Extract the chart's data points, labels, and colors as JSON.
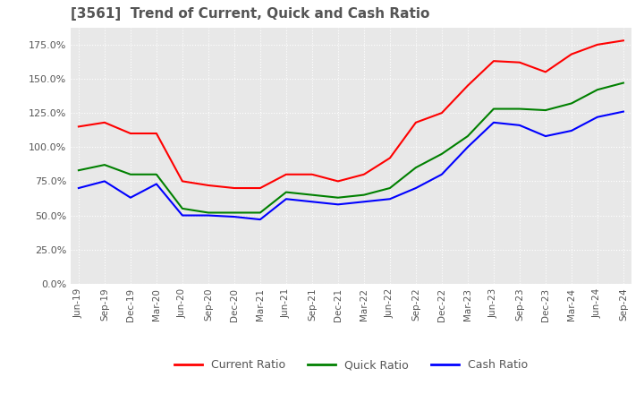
{
  "title": "[3561]  Trend of Current, Quick and Cash Ratio",
  "title_color": "#555555",
  "background_color": "#ffffff",
  "plot_background_color": "#e8e8e8",
  "grid_color": "#ffffff",
  "x_labels": [
    "Jun-19",
    "Sep-19",
    "Dec-19",
    "Mar-20",
    "Jun-20",
    "Sep-20",
    "Dec-20",
    "Mar-21",
    "Jun-21",
    "Sep-21",
    "Dec-21",
    "Mar-22",
    "Jun-22",
    "Sep-22",
    "Dec-22",
    "Mar-23",
    "Jun-23",
    "Sep-23",
    "Dec-23",
    "Mar-24",
    "Jun-24",
    "Sep-24"
  ],
  "current_ratio": [
    115.0,
    118.0,
    110.0,
    110.0,
    75.0,
    72.0,
    70.0,
    70.0,
    80.0,
    80.0,
    75.0,
    80.0,
    92.0,
    118.0,
    125.0,
    145.0,
    163.0,
    162.0,
    155.0,
    168.0,
    175.0,
    178.0
  ],
  "quick_ratio": [
    83.0,
    87.0,
    80.0,
    80.0,
    55.0,
    52.0,
    52.0,
    52.0,
    67.0,
    65.0,
    63.0,
    65.0,
    70.0,
    85.0,
    95.0,
    108.0,
    128.0,
    128.0,
    127.0,
    132.0,
    142.0,
    147.0
  ],
  "cash_ratio": [
    70.0,
    75.0,
    63.0,
    73.0,
    50.0,
    50.0,
    49.0,
    47.0,
    62.0,
    60.0,
    58.0,
    60.0,
    62.0,
    70.0,
    80.0,
    100.0,
    118.0,
    116.0,
    108.0,
    112.0,
    122.0,
    126.0
  ],
  "current_color": "#ff0000",
  "quick_color": "#008000",
  "cash_color": "#0000ff",
  "line_width": 1.5,
  "ylim": [
    0,
    187.5
  ],
  "yticks": [
    0,
    25,
    50,
    75,
    100,
    125,
    150,
    175
  ],
  "legend_labels": [
    "Current Ratio",
    "Quick Ratio",
    "Cash Ratio"
  ]
}
